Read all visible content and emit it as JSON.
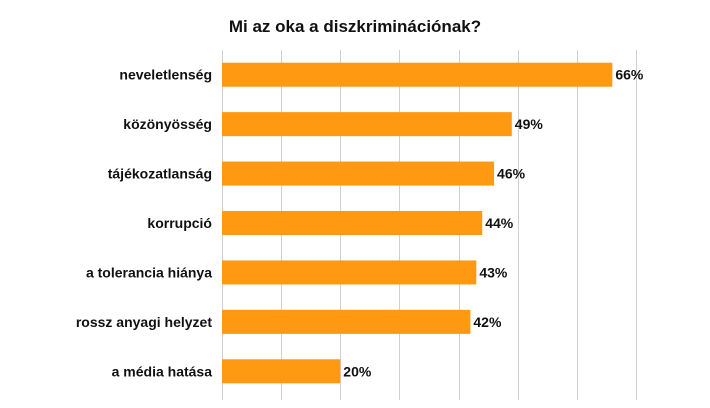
{
  "chart_data": {
    "type": "bar",
    "orientation": "horizontal",
    "title": "Mi az oka a diszkriminációnak?",
    "categories": [
      "neveletlenség",
      "közönyösség",
      "tájékozatlanság",
      "korrupció",
      "a tolerancia hiánya",
      "rossz anyagi helyzet",
      "a média hatása"
    ],
    "values": [
      66,
      49,
      46,
      44,
      43,
      42,
      20
    ],
    "value_labels": [
      "66%",
      "49%",
      "46%",
      "44%",
      "43%",
      "42%",
      "20%"
    ],
    "xlim": [
      0,
      70
    ],
    "grid": true,
    "bar_color": "#FF9912",
    "grid_color": "#d0d0d0"
  }
}
